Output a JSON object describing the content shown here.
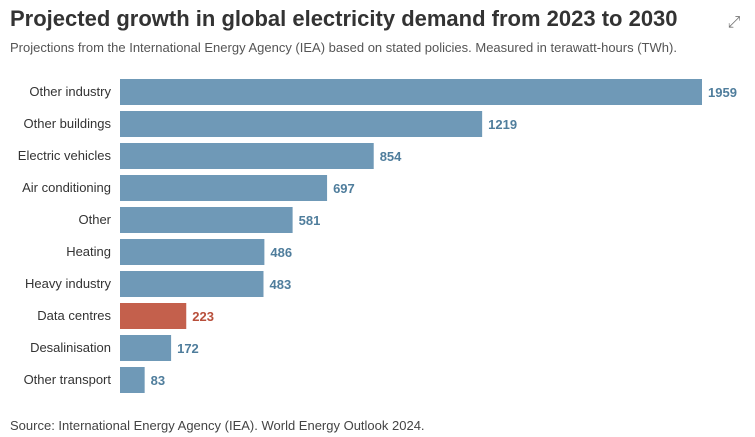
{
  "header": {
    "title": "Projected growth in global electricity demand from 2023 to 2030",
    "subtitle": "Projections from the International Energy Agency (IEA) based on stated policies. Measured in terawatt-hours (TWh)."
  },
  "footer": {
    "source": "Source: International Energy Agency (IEA). World Energy Outlook 2024."
  },
  "colors": {
    "bar_default": "#6f99b7",
    "bar_highlight": "#c4604c",
    "label_default": "#4f7d9c",
    "label_highlight": "#b84f3b"
  },
  "chart_data": {
    "type": "bar",
    "orientation": "horizontal",
    "title": "Projected growth in global electricity demand from 2023 to 2030",
    "xlabel": "",
    "ylabel": "",
    "unit": "TWh",
    "categories": [
      "Other industry",
      "Other buildings",
      "Electric vehicles",
      "Air conditioning",
      "Other",
      "Heating",
      "Heavy industry",
      "Data centres",
      "Desalinisation",
      "Other transport"
    ],
    "values": [
      1959,
      1219,
      854,
      697,
      581,
      486,
      483,
      223,
      172,
      83
    ],
    "value_labels": [
      "1959",
      "1219",
      "854",
      "697",
      "581",
      "486",
      "483",
      "223",
      "172",
      "83"
    ],
    "highlight": [
      "Data centres"
    ],
    "xlim": [
      0,
      1959
    ],
    "grid": false,
    "legend": "none"
  }
}
